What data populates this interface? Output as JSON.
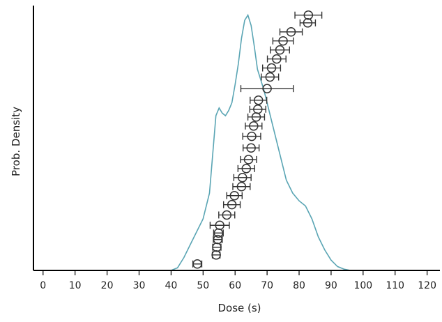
{
  "chart_data": {
    "type": "scatter",
    "title": "",
    "xlabel": "Dose (s)",
    "ylabel": "Prob. Density",
    "xlim": [
      -3,
      124
    ],
    "x_ticks": [
      0,
      10,
      20,
      30,
      40,
      50,
      60,
      70,
      80,
      90,
      100,
      110,
      120
    ],
    "x_tick_labels": [
      "0",
      "10",
      "20",
      "30",
      "40",
      "50",
      "60",
      "70",
      "80",
      "90",
      "100",
      "110",
      "120"
    ],
    "ylim": [
      0,
      1
    ],
    "y_ticks_shown": false,
    "grid": false,
    "legend": "none",
    "colors": {
      "density_curve": "#5aa5b4",
      "points": "#333333",
      "axes": "#000000"
    },
    "series": [
      {
        "kind": "density-line",
        "x": [
          -3,
          40,
          42,
          44,
          46,
          48,
          50,
          52,
          53,
          54,
          55,
          56,
          57,
          58,
          59,
          60,
          61,
          62,
          63,
          64,
          65,
          66,
          67,
          68,
          69,
          70,
          72,
          74,
          76,
          78,
          80,
          82,
          84,
          86,
          88,
          90,
          92,
          94,
          96,
          124
        ],
        "y": [
          0,
          0,
          0.01,
          0.05,
          0.1,
          0.15,
          0.2,
          0.3,
          0.45,
          0.6,
          0.63,
          0.61,
          0.6,
          0.62,
          0.65,
          0.72,
          0.8,
          0.9,
          0.97,
          0.99,
          0.95,
          0.87,
          0.78,
          0.74,
          0.7,
          0.65,
          0.55,
          0.45,
          0.35,
          0.3,
          0.27,
          0.25,
          0.2,
          0.13,
          0.08,
          0.04,
          0.015,
          0.005,
          0,
          0
        ]
      },
      {
        "kind": "ordered-points-with-error-bars",
        "x": [
          48.2,
          54.1,
          54.3,
          54.6,
          54.8,
          55.2,
          57.4,
          59.0,
          59.8,
          62.0,
          62.3,
          63.5,
          64.2,
          65.0,
          65.2,
          65.8,
          66.6,
          67.1,
          67.3,
          70.0,
          70.9,
          71.4,
          73.0,
          74.0,
          75.0,
          77.5,
          82.7,
          82.9
        ],
        "xerr": [
          1.4,
          1.2,
          1.3,
          1.4,
          1.5,
          3.0,
          2.5,
          2.6,
          2.4,
          2.7,
          2.7,
          2.6,
          2.5,
          2.5,
          2.8,
          2.6,
          2.6,
          2.5,
          2.6,
          8.2,
          2.7,
          2.8,
          2.9,
          3.0,
          3.2,
          3.5,
          2.4,
          4.2
        ],
        "y": [
          0.025,
          0.06,
          0.09,
          0.12,
          0.145,
          0.175,
          0.215,
          0.255,
          0.29,
          0.325,
          0.36,
          0.395,
          0.43,
          0.475,
          0.52,
          0.56,
          0.595,
          0.625,
          0.66,
          0.705,
          0.75,
          0.785,
          0.82,
          0.855,
          0.89,
          0.925,
          0.96,
          0.99
        ]
      }
    ]
  }
}
